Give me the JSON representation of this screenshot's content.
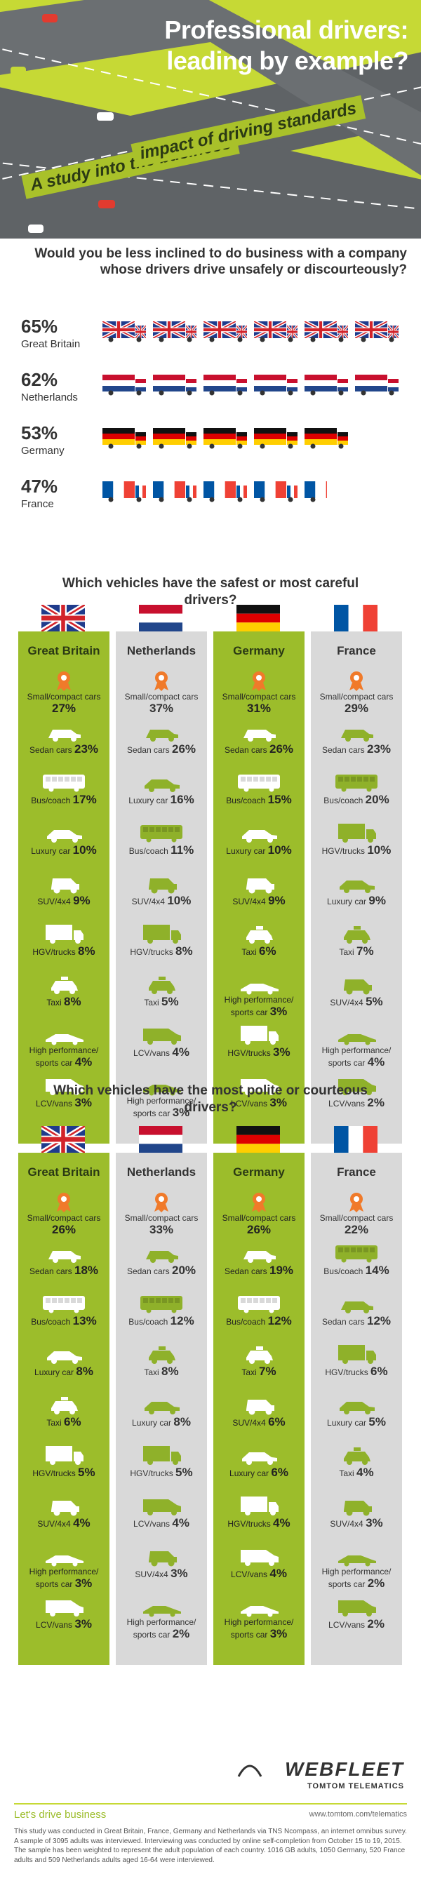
{
  "hero": {
    "title_line1": "Professional drivers:",
    "title_line2": "leading by example?",
    "subtitle_line1": "A study into the business",
    "subtitle_line2": "impact of driving standards"
  },
  "q1": {
    "question": "Would you be less inclined to do business with a company whose drivers drive unsafely or discourteously?",
    "rows": [
      {
        "pct": "65%",
        "name": "Great Britain",
        "value": 65,
        "trucks": 6,
        "flag": "gb"
      },
      {
        "pct": "62%",
        "name": "Netherlands",
        "value": 62,
        "trucks": 6,
        "flag": "nl"
      },
      {
        "pct": "53%",
        "name": "Germany",
        "value": 53,
        "trucks": 5,
        "flag": "de"
      },
      {
        "pct": "47%",
        "name": "France",
        "value": 47,
        "trucks": 4.5,
        "flag": "fr"
      }
    ]
  },
  "chart_data": [
    {
      "type": "table",
      "title": "Which vehicles have the safest or most careful drivers?",
      "columns": [
        {
          "name": "Great Britain",
          "flag": "gb",
          "items": [
            {
              "label": "Small/compact cars",
              "value": "27%",
              "icon": "small-car-icon"
            },
            {
              "label": "Sedan cars",
              "value": "23%",
              "icon": "sedan-icon"
            },
            {
              "label": "Bus/coach",
              "value": "17%",
              "icon": "bus-icon"
            },
            {
              "label": "Luxury car",
              "value": "10%",
              "icon": "luxury-car-icon"
            },
            {
              "label": "SUV/4x4",
              "value": "9%",
              "icon": "suv-icon"
            },
            {
              "label": "HGV/trucks",
              "value": "8%",
              "icon": "truck-icon"
            },
            {
              "label": "Taxi",
              "value": "8%",
              "icon": "taxi-icon"
            },
            {
              "label": "High performance/ sports car",
              "value": "4%",
              "icon": "sports-car-icon"
            },
            {
              "label": "LCV/vans",
              "value": "3%",
              "icon": "van-icon"
            }
          ]
        },
        {
          "name": "Netherlands",
          "flag": "nl",
          "items": [
            {
              "label": "Small/compact cars",
              "value": "37%",
              "icon": "small-car-icon"
            },
            {
              "label": "Sedan cars",
              "value": "26%",
              "icon": "sedan-icon"
            },
            {
              "label": "Luxury car",
              "value": "16%",
              "icon": "luxury-car-icon"
            },
            {
              "label": "Bus/coach",
              "value": "11%",
              "icon": "bus-icon"
            },
            {
              "label": "SUV/4x4",
              "value": "10%",
              "icon": "suv-icon"
            },
            {
              "label": "HGV/trucks",
              "value": "8%",
              "icon": "truck-icon"
            },
            {
              "label": "Taxi",
              "value": "5%",
              "icon": "taxi-icon"
            },
            {
              "label": "LCV/vans",
              "value": "4%",
              "icon": "van-icon"
            },
            {
              "label": "High performance/ sports car",
              "value": "3%",
              "icon": "sports-car-icon"
            }
          ]
        },
        {
          "name": "Germany",
          "flag": "de",
          "items": [
            {
              "label": "Small/compact cars",
              "value": "31%",
              "icon": "small-car-icon"
            },
            {
              "label": "Sedan cars",
              "value": "26%",
              "icon": "sedan-icon"
            },
            {
              "label": "Bus/coach",
              "value": "15%",
              "icon": "bus-icon"
            },
            {
              "label": "Luxury car",
              "value": "10%",
              "icon": "luxury-car-icon"
            },
            {
              "label": "SUV/4x4",
              "value": "9%",
              "icon": "suv-icon"
            },
            {
              "label": "Taxi",
              "value": "6%",
              "icon": "taxi-icon"
            },
            {
              "label": "High performance/ sports car",
              "value": "3%",
              "icon": "sports-car-icon"
            },
            {
              "label": "HGV/trucks",
              "value": "3%",
              "icon": "truck-icon"
            },
            {
              "label": "LCV/vans",
              "value": "3%",
              "icon": "van-icon"
            }
          ]
        },
        {
          "name": "France",
          "flag": "fr",
          "items": [
            {
              "label": "Small/compact cars",
              "value": "29%",
              "icon": "small-car-icon"
            },
            {
              "label": "Sedan cars",
              "value": "23%",
              "icon": "sedan-icon"
            },
            {
              "label": "Bus/coach",
              "value": "20%",
              "icon": "bus-icon"
            },
            {
              "label": "HGV/trucks",
              "value": "10%",
              "icon": "truck-icon"
            },
            {
              "label": "Luxury car",
              "value": "9%",
              "icon": "luxury-car-icon"
            },
            {
              "label": "Taxi",
              "value": "7%",
              "icon": "taxi-icon"
            },
            {
              "label": "SUV/4x4",
              "value": "5%",
              "icon": "suv-icon"
            },
            {
              "label": "High performance/ sports car",
              "value": "4%",
              "icon": "sports-car-icon"
            },
            {
              "label": "LCV/vans",
              "value": "2%",
              "icon": "van-icon"
            }
          ]
        }
      ]
    },
    {
      "type": "table",
      "title": "Which vehicles have the most polite or courteous drivers?",
      "columns": [
        {
          "name": "Great Britain",
          "flag": "gb",
          "items": [
            {
              "label": "Small/compact cars",
              "value": "26%",
              "icon": "small-car-icon"
            },
            {
              "label": "Sedan cars",
              "value": "18%",
              "icon": "sedan-icon"
            },
            {
              "label": "Bus/coach",
              "value": "13%",
              "icon": "bus-icon"
            },
            {
              "label": "Luxury car",
              "value": "8%",
              "icon": "luxury-car-icon"
            },
            {
              "label": "Taxi",
              "value": "6%",
              "icon": "taxi-icon"
            },
            {
              "label": "HGV/trucks",
              "value": "5%",
              "icon": "truck-icon"
            },
            {
              "label": "SUV/4x4",
              "value": "4%",
              "icon": "suv-icon"
            },
            {
              "label": "High performance/ sports car",
              "value": "3%",
              "icon": "sports-car-icon"
            },
            {
              "label": "LCV/vans",
              "value": "3%",
              "icon": "van-icon"
            }
          ]
        },
        {
          "name": "Netherlands",
          "flag": "nl",
          "items": [
            {
              "label": "Small/compact cars",
              "value": "33%",
              "icon": "small-car-icon"
            },
            {
              "label": "Sedan cars",
              "value": "20%",
              "icon": "sedan-icon"
            },
            {
              "label": "Bus/coach",
              "value": "12%",
              "icon": "bus-icon"
            },
            {
              "label": "Taxi",
              "value": "8%",
              "icon": "taxi-icon"
            },
            {
              "label": "Luxury car",
              "value": "8%",
              "icon": "luxury-car-icon"
            },
            {
              "label": "HGV/trucks",
              "value": "5%",
              "icon": "truck-icon"
            },
            {
              "label": "LCV/vans",
              "value": "4%",
              "icon": "van-icon"
            },
            {
              "label": "SUV/4x4",
              "value": "3%",
              "icon": "suv-icon"
            },
            {
              "label": "High performance/ sports car",
              "value": "2%",
              "icon": "sports-car-icon"
            }
          ]
        },
        {
          "name": "Germany",
          "flag": "de",
          "items": [
            {
              "label": "Small/compact cars",
              "value": "26%",
              "icon": "small-car-icon"
            },
            {
              "label": "Sedan cars",
              "value": "19%",
              "icon": "sedan-icon"
            },
            {
              "label": "Bus/coach",
              "value": "12%",
              "icon": "bus-icon"
            },
            {
              "label": "Taxi",
              "value": "7%",
              "icon": "taxi-icon"
            },
            {
              "label": "SUV/4x4",
              "value": "6%",
              "icon": "suv-icon"
            },
            {
              "label": "Luxury car",
              "value": "6%",
              "icon": "luxury-car-icon"
            },
            {
              "label": "HGV/trucks",
              "value": "4%",
              "icon": "truck-icon"
            },
            {
              "label": "LCV/vans",
              "value": "4%",
              "icon": "van-icon"
            },
            {
              "label": "High performance/ sports car",
              "value": "3%",
              "icon": "sports-car-icon"
            }
          ]
        },
        {
          "name": "France",
          "flag": "fr",
          "items": [
            {
              "label": "Small/compact cars",
              "value": "22%",
              "icon": "small-car-icon"
            },
            {
              "label": "Bus/coach",
              "value": "14%",
              "icon": "bus-icon"
            },
            {
              "label": "Sedan cars",
              "value": "12%",
              "icon": "sedan-icon"
            },
            {
              "label": "HGV/trucks",
              "value": "6%",
              "icon": "truck-icon"
            },
            {
              "label": "Luxury car",
              "value": "5%",
              "icon": "luxury-car-icon"
            },
            {
              "label": "Taxi",
              "value": "4%",
              "icon": "taxi-icon"
            },
            {
              "label": "SUV/4x4",
              "value": "3%",
              "icon": "suv-icon"
            },
            {
              "label": "High performance/ sports car",
              "value": "2%",
              "icon": "sports-car-icon"
            },
            {
              "label": "LCV/vans",
              "value": "2%",
              "icon": "van-icon"
            }
          ]
        }
      ]
    }
  ],
  "colors": {
    "accent": "#c6d935",
    "green_col": "#9cbd2b",
    "grey_col": "#d9d9d9",
    "text": "#333333"
  },
  "footer": {
    "logo": "WEBFLEET",
    "logo_sub": "TOMTOM TELEMATICS",
    "tagline": "Let's drive business",
    "url": "www.tomtom.com/telematics",
    "note": "This study was conducted in Great Britain, France, Germany and Netherlands via TNS Ncompass, an internet omnibus survey. A sample of 3095 adults was interviewed. Interviewing was conducted by online self-completion from October 15 to 19, 2015. The sample has been weighted to represent the adult population of each country. 1016 GB adults, 1050 Germany, 520 France adults and 509 Netherlands adults aged 16-64 were interviewed."
  }
}
